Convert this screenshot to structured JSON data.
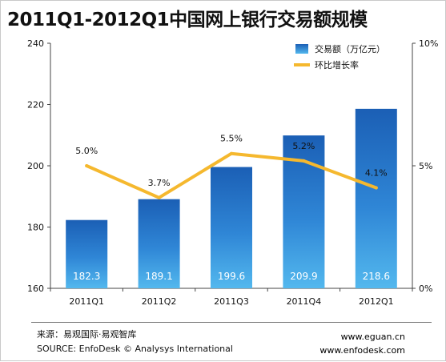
{
  "title": "2011Q1-2012Q1中国网上银行交易额规模",
  "chart_data": {
    "type": "bar",
    "categories": [
      "2011Q1",
      "2011Q2",
      "2011Q3",
      "2011Q4",
      "2012Q1"
    ],
    "series": [
      {
        "name": "交易额（万亿元）",
        "type": "bar",
        "axis": "left",
        "values": [
          182.3,
          189.1,
          199.6,
          209.9,
          218.6
        ],
        "color": "#2e82d6"
      },
      {
        "name": "环比增长率",
        "type": "line",
        "axis": "right",
        "values": [
          5.0,
          3.7,
          5.5,
          5.2,
          4.1
        ],
        "color": "#f5b82e"
      }
    ],
    "bar_labels": [
      "182.3",
      "189.1",
      "199.6",
      "209.9",
      "218.6"
    ],
    "line_labels": [
      "5.0%",
      "3.7%",
      "5.5%",
      "5.2%",
      "4.1%"
    ],
    "y_left": {
      "min": 160,
      "max": 240,
      "ticks": [
        "160",
        "180",
        "200",
        "220",
        "240"
      ]
    },
    "y_right": {
      "min": 0,
      "max": 10,
      "ticks": [
        "0%",
        "5%",
        "10%"
      ]
    },
    "legend_placement": "top-right",
    "grid": false
  },
  "footer": {
    "source_cn": "来源：易观国际·易观智库",
    "source_en": "SOURCE: EnfoDesk © Analysys International",
    "site1": "www.eguan.cn",
    "site2": "www.enfodesk.com"
  }
}
